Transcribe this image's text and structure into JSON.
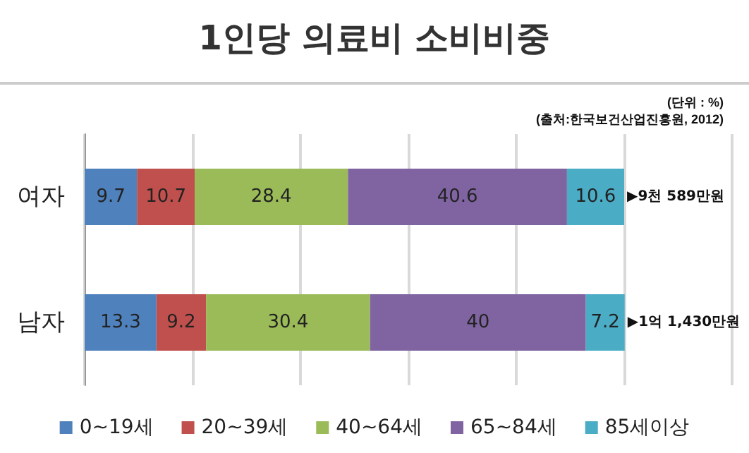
{
  "chart_data": {
    "type": "bar",
    "orientation": "horizontal",
    "stacked": true,
    "title": "1인당 의료비 소비비중",
    "annotations": [
      "(단위 : %)",
      "(출처:한국보건산업진흥원, 2012)"
    ],
    "categories": [
      "여자",
      "남자"
    ],
    "series": [
      {
        "name": "0~19세",
        "color": "#4f81bd",
        "values": [
          9.7,
          13.3
        ]
      },
      {
        "name": "20~39세",
        "color": "#c0504d",
        "values": [
          10.7,
          9.2
        ]
      },
      {
        "name": "40~64세",
        "color": "#9bbb59",
        "values": [
          28.4,
          30.4
        ]
      },
      {
        "name": "65~84세",
        "color": "#8064a2",
        "values": [
          40.6,
          40
        ]
      },
      {
        "name": "85세이상",
        "color": "#4bacc6",
        "values": [
          10.6,
          7.2
        ]
      }
    ],
    "totals": [
      "▶9천 589만원",
      "▶1억 1,430만원"
    ],
    "data_labels": true,
    "xlim": [
      0,
      120
    ],
    "xticks": [
      {
        "value": 0,
        "label": null
      },
      {
        "value": 20,
        "label": null
      },
      {
        "value": 40,
        "label": null
      },
      {
        "value": 60,
        "label": null
      },
      {
        "value": 80,
        "label": null
      },
      {
        "value": 100,
        "label": null
      },
      {
        "value": 120,
        "label": null
      }
    ],
    "tick_labels": "y",
    "grid": "x",
    "legend": "bottom"
  }
}
